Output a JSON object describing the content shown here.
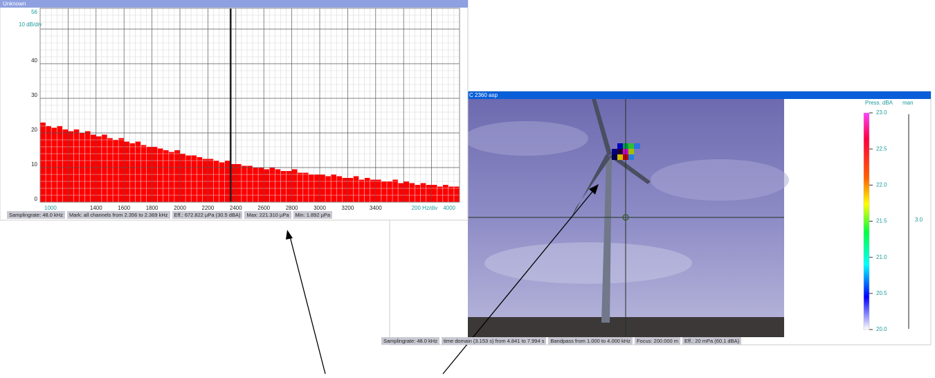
{
  "chart_data": {
    "type": "histogram",
    "title": "Unknown",
    "y_unit_label": "10 dB/div",
    "x_unit_label": "200 Hz/div",
    "color": "#ff0000",
    "bins": [
      1000,
      1040,
      1080,
      1120,
      1160,
      1200,
      1240,
      1280,
      1320,
      1360,
      1400,
      1440,
      1480,
      1520,
      1560,
      1600,
      1640,
      1680,
      1720,
      1760,
      1800,
      1840,
      1880,
      1920,
      1960,
      2000,
      2040,
      2080,
      2120,
      2160,
      2200,
      2240,
      2280,
      2320,
      2360,
      2400,
      2440,
      2480,
      2520,
      2560,
      2600,
      2640,
      2680,
      2720,
      2760,
      2800,
      2840,
      2880,
      2920,
      2960,
      3000,
      3040,
      3080,
      3120,
      3160,
      3200,
      3240,
      3280,
      3320,
      3360,
      3400,
      3440,
      3480,
      3520,
      3560,
      3600,
      3640,
      3680,
      3720,
      3760,
      3800,
      3840,
      3880,
      3920,
      3960,
      4000
    ],
    "values": [
      23,
      22,
      21.5,
      22,
      21,
      20.5,
      21,
      20,
      20.5,
      19.5,
      19,
      19.5,
      18.5,
      18,
      18.5,
      17.5,
      17,
      17.5,
      16.5,
      16,
      16,
      15.5,
      15,
      14.5,
      15,
      14,
      13.5,
      13.5,
      13,
      12.5,
      12.5,
      12,
      11.5,
      12,
      11,
      11,
      10.5,
      10.5,
      10,
      10,
      9.5,
      10,
      9.5,
      9,
      9,
      9.5,
      8.5,
      8.5,
      8,
      8,
      8,
      7.5,
      8,
      7.5,
      7,
      7,
      7.5,
      6.5,
      7,
      6.5,
      6.5,
      6,
      6,
      6.5,
      5.5,
      6,
      5.5,
      5,
      5.5,
      5,
      5,
      4.5,
      5,
      4.5,
      4.5
    ],
    "xlim": [
      1000,
      4000
    ],
    "xticks": [
      1000,
      {
        "value": 1200,
        "label": null
      },
      1400,
      1600,
      1800,
      2000,
      2200,
      2400,
      2600,
      2800,
      3000,
      3200,
      3400,
      {
        "value": 3600,
        "label": null
      },
      {
        "value": 3800,
        "label": null
      },
      4000
    ],
    "ylim": [
      0,
      56
    ],
    "yticks": [
      0,
      10,
      20,
      30,
      40,
      {
        "value": 50,
        "label": null
      },
      56
    ],
    "grid": true,
    "marker_range": [
      2356,
      2369
    ],
    "status": [
      "Samplingrate: 48.0 kHz",
      "Mark: all channels from 2.356 to 2.369 kHz",
      "Eff.: 672.822 µPa  (30.5 dBA)",
      "Max: 221.310 µPa",
      "Min: 1.892 µPa"
    ]
  },
  "camera_window": {
    "title": "C 2360 asp",
    "status": [
      "Samplingrate: 48.0 kHz",
      "time domain (3.153 s) from 4.841 to 7.994 s",
      "Bandpass from 1.000 to 4.000 kHz",
      "Focus: 200.000 m",
      "Eff.: 20 mPa (60.1 dBA)"
    ],
    "color_scale": {
      "title": "Press. dBA",
      "mode": "man",
      "range_label": "3.0",
      "lim": [
        20,
        23
      ],
      "ticks": [
        {
          "value": 23,
          "label": "23.0"
        },
        {
          "value": 22.5,
          "label": "22.5"
        },
        {
          "value": 22,
          "label": "22.0"
        },
        {
          "value": 21.5,
          "label": "21.5"
        },
        {
          "value": 21,
          "label": "21.0"
        },
        {
          "value": 20.5,
          "label": "20.5"
        },
        {
          "value": 20,
          "label": "20.0"
        }
      ]
    }
  }
}
